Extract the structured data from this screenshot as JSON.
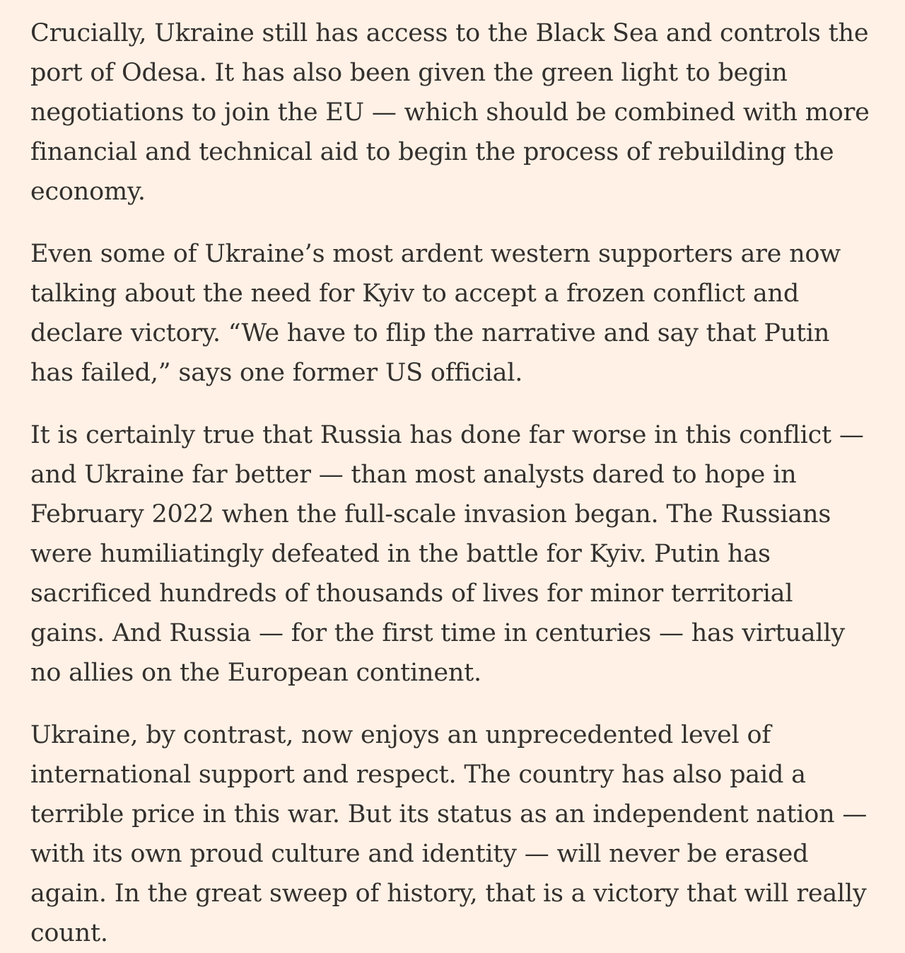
{
  "theme": {
    "background_color": "#FFF1E5",
    "text_color": "#33302E"
  },
  "article": {
    "paragraphs": [
      "Crucially, Ukraine still has access to the Black Sea and controls the port of Odesa. It has also been given the green light to begin negotiations to join the EU — which should be combined with more financial and technical aid to begin the process of rebuilding the economy.",
      "Even some of Ukraine’s most ardent western supporters are now talking about the need for Kyiv to accept a frozen conflict and declare victory. “We have to flip the narrative and say that Putin has failed,” says one former US official.",
      "It is certainly true that Russia has done far worse in this conflict — and Ukraine far better — than most analysts dared to hope in February 2022 when the full-scale invasion began. The Russians were humiliatingly defeated in the battle for Kyiv. Putin has sacrificed hundreds of thousands of lives for minor territorial gains. And Russia — for the first time in centuries — has virtually no allies on the European continent.",
      "Ukraine, by contrast, now enjoys an unprecedented level of international support and respect. The country has also paid a terrible price in this war. But its status as an independent nation — with its own proud culture and identity — will never be erased again. In the great sweep of history, that is a victory that will really count."
    ]
  }
}
